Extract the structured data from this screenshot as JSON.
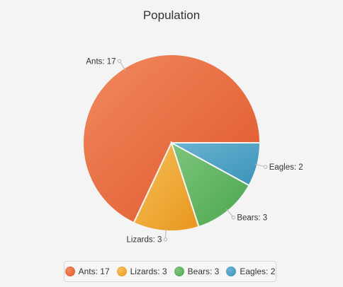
{
  "chart_data": {
    "type": "pie",
    "title": "Population",
    "slices": [
      {
        "label": "Ants",
        "value": 17,
        "display": "Ants: 17",
        "color": "#e0552a",
        "light": "#f08a5e"
      },
      {
        "label": "Lizards",
        "value": 3,
        "display": "Lizards: 3",
        "color": "#e8961d",
        "light": "#f6c05a"
      },
      {
        "label": "Bears",
        "value": 3,
        "display": "Bears: 3",
        "color": "#4ca64e",
        "light": "#7dc57c"
      },
      {
        "label": "Eagles",
        "value": 2,
        "display": "Eagles: 2",
        "color": "#3a93b8",
        "light": "#6bb3d2"
      }
    ],
    "legend_position": "bottom"
  }
}
